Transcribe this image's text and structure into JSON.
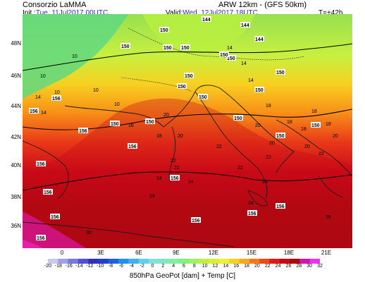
{
  "header": {
    "title": "Consorzio LaMMA",
    "model": "ARW 12km - (GFS 50km)",
    "init_label": "Init.:",
    "init_value": "Tue, 11Jul2017 00UTC",
    "valid_label": "Valid:",
    "valid_value": "Wed, 12Jul2017 18UTC",
    "lead_time": "T=+42h"
  },
  "axes": {
    "y_ticks": [
      "48N",
      "46N",
      "44N",
      "42N",
      "40N",
      "38N",
      "36N"
    ],
    "x_ticks": [
      "0",
      "3E",
      "6E",
      "9E",
      "12E",
      "15E",
      "18E",
      "21E"
    ]
  },
  "colorbar": {
    "labels": [
      "-20",
      "-18",
      "-16",
      "-14",
      "-12",
      "-10",
      "-8",
      "-6",
      "-4",
      "-2",
      "0",
      "2",
      "4",
      "6",
      "8",
      "10",
      "12",
      "14",
      "16",
      "18",
      "20",
      "22",
      "24",
      "26",
      "28",
      "30",
      "32"
    ],
    "colors": [
      "#c8c8f0",
      "#a0a0e8",
      "#7878e0",
      "#5050d8",
      "#3030c0",
      "#2040d0",
      "#2060e0",
      "#2090f0",
      "#40b0f0",
      "#60d0f0",
      "#80e0e0",
      "#80e8c0",
      "#80f0a0",
      "#80f080",
      "#a0f060",
      "#c0f040",
      "#d8f030",
      "#f0f030",
      "#f8d020",
      "#f8a818",
      "#f87818",
      "#f04818",
      "#e01818",
      "#c80818",
      "#a80810",
      "#d018b0",
      "#f030f0"
    ]
  },
  "footer": "850hPa GeoPot [dam] + Temp [C]",
  "map": {
    "temp_labels": [
      "10",
      "10",
      "10",
      "10",
      "10",
      "14",
      "14",
      "14",
      "14",
      "14",
      "16",
      "18",
      "18",
      "18",
      "18",
      "18",
      "18",
      "20",
      "20",
      "20",
      "20",
      "20",
      "20",
      "20",
      "22",
      "22",
      "22",
      "22",
      "22",
      "24",
      "24",
      "24",
      "24",
      "24",
      "26",
      "30"
    ],
    "geopot_labels": [
      "144",
      "144",
      "144",
      "150",
      "150",
      "150",
      "150",
      "150",
      "150",
      "150",
      "150",
      "150",
      "150",
      "150",
      "150",
      "150",
      "150",
      "150",
      "150",
      "150",
      "156",
      "156",
      "156",
      "156",
      "156",
      "156",
      "156",
      "156",
      "156",
      "156",
      "156",
      "156"
    ]
  }
}
